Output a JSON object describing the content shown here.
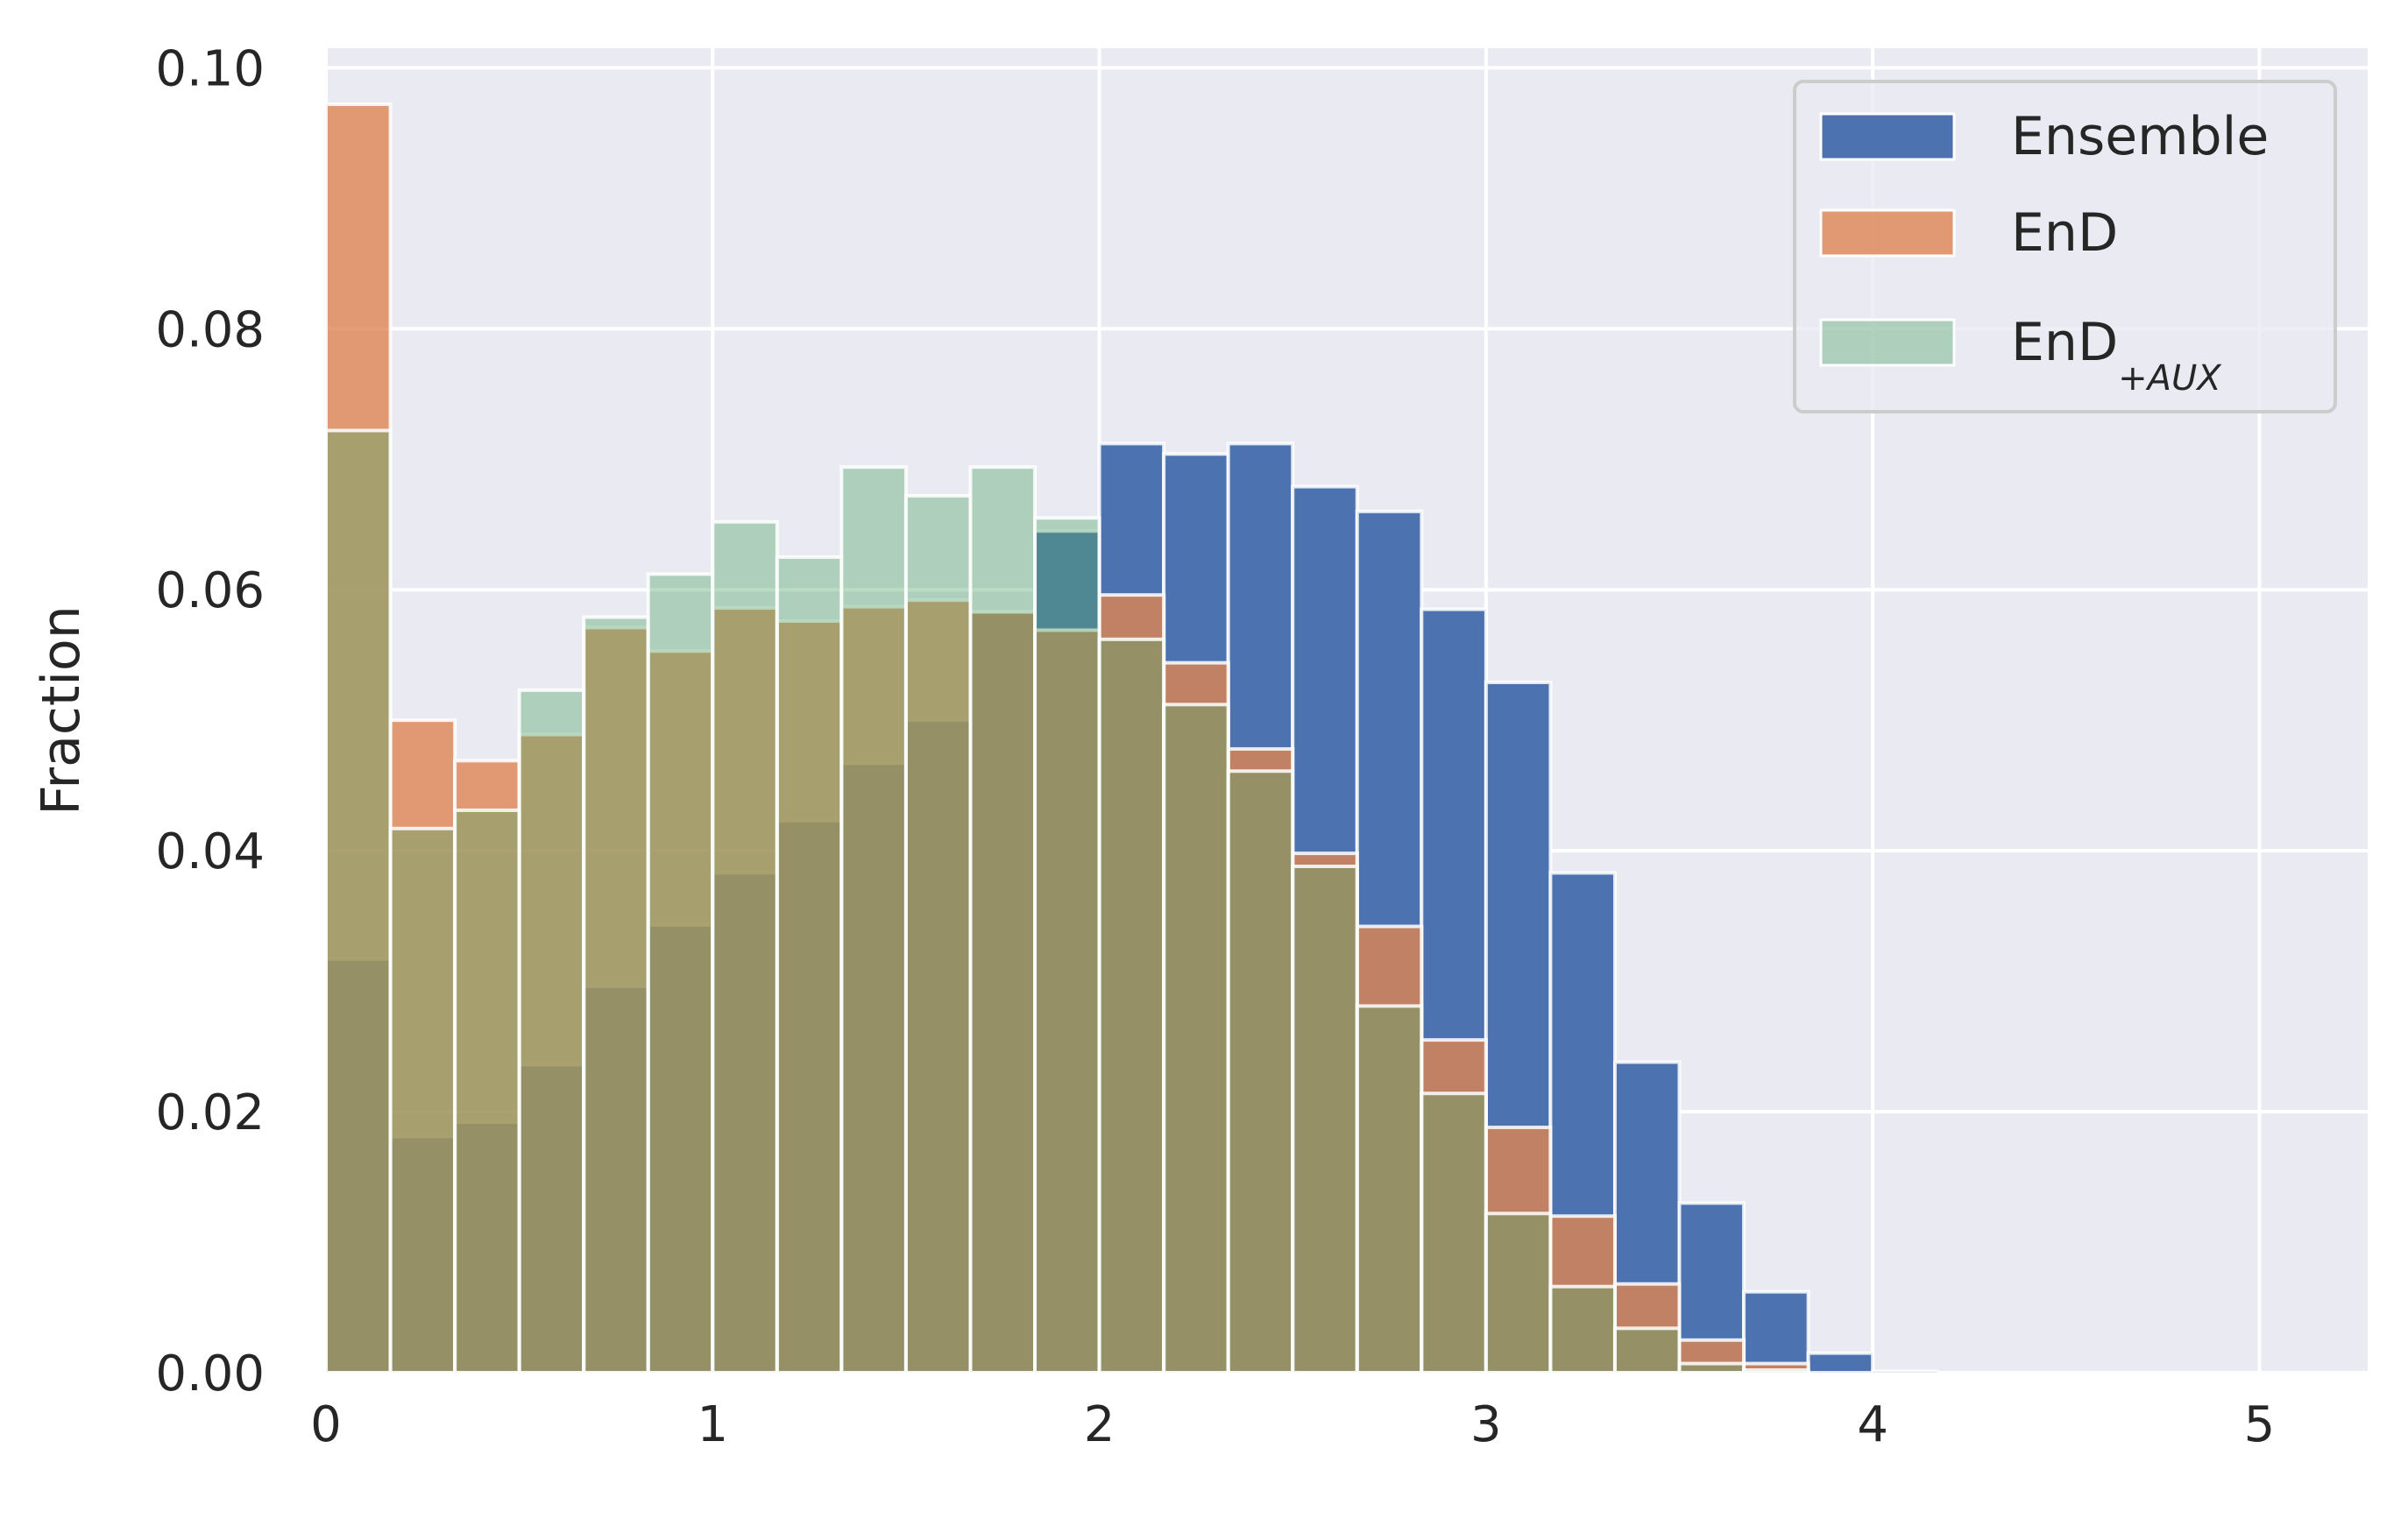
{
  "chart_data": {
    "type": "bar",
    "subtype": "overlapping-histogram",
    "title": "",
    "xlabel": "",
    "ylabel": "Fraction",
    "xlim": [
      0,
      5.28
    ],
    "ylim": [
      0,
      0.1015
    ],
    "x_ticks": [
      0,
      1,
      2,
      3,
      4,
      5
    ],
    "x_tick_labels": [
      "0",
      "1",
      "2",
      "3",
      "4",
      "5"
    ],
    "y_ticks": [
      0.0,
      0.02,
      0.04,
      0.06,
      0.08,
      0.1
    ],
    "y_tick_labels": [
      "0.00",
      "0.02",
      "0.04",
      "0.06",
      "0.08",
      "0.10"
    ],
    "grid": true,
    "legend_position": "top-right",
    "bin_width": 0.1667,
    "bin_starts": [
      0,
      0.1667,
      0.3333,
      0.5,
      0.6667,
      0.8333,
      1.0,
      1.1667,
      1.3333,
      1.5,
      1.6667,
      1.8333,
      2.0,
      2.1667,
      2.3333,
      2.5,
      2.6667,
      2.8333,
      3.0,
      3.1667,
      3.3333,
      3.5,
      3.6667,
      3.8333,
      4.0
    ],
    "series": [
      {
        "name": "Ensemble",
        "color": "#4c72b0",
        "opacity": 1.0,
        "values": [
          0.0317,
          0.0181,
          0.0192,
          0.0236,
          0.0296,
          0.0343,
          0.0383,
          0.0423,
          0.0467,
          0.05,
          0.0583,
          0.0645,
          0.0712,
          0.0704,
          0.0712,
          0.0679,
          0.066,
          0.0585,
          0.0529,
          0.0383,
          0.0238,
          0.013,
          0.0062,
          0.0015,
          0.0001
        ]
      },
      {
        "name": "EnD",
        "color": "#dd8452",
        "opacity": 0.8,
        "values": [
          0.0972,
          0.05,
          0.0469,
          0.0489,
          0.0571,
          0.0553,
          0.0586,
          0.0576,
          0.0587,
          0.0592,
          0.0583,
          0.0569,
          0.0596,
          0.0544,
          0.0478,
          0.0398,
          0.0342,
          0.0255,
          0.0188,
          0.012,
          0.0068,
          0.0025,
          0.0007,
          0.0,
          0.0
        ]
      },
      {
        "name": "EnD",
        "name_subscript": "+AUX",
        "color": "#55a868",
        "opacity": 0.4,
        "values": [
          0.0722,
          0.0417,
          0.0431,
          0.0523,
          0.0579,
          0.0612,
          0.0652,
          0.0625,
          0.0694,
          0.0672,
          0.0694,
          0.0655,
          0.0562,
          0.0512,
          0.0461,
          0.0388,
          0.0281,
          0.0214,
          0.0122,
          0.0066,
          0.0034,
          0.0007,
          0.0002,
          0.0,
          0.0
        ]
      }
    ]
  }
}
